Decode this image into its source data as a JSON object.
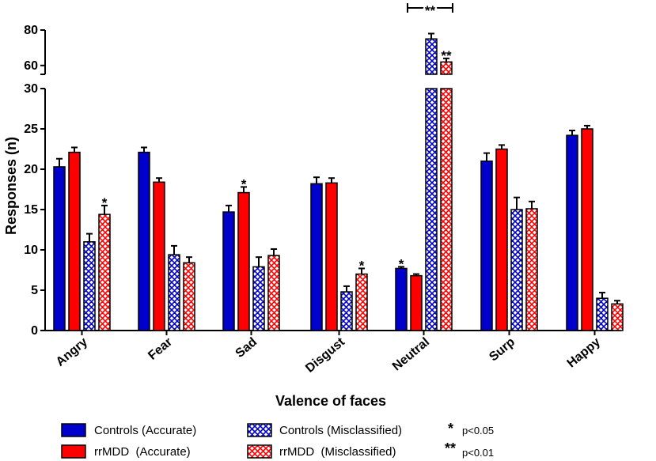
{
  "chart_data": {
    "type": "bar",
    "xlabel": "Valence of faces",
    "ylabel": "Responses (n)",
    "categories": [
      "Angry",
      "Fear",
      "Sad",
      "Disgust",
      "Neutral",
      "Surp",
      "Happy"
    ],
    "y_axis_lower": {
      "range": [
        0,
        30
      ],
      "ticks": [
        "0",
        "5",
        "10",
        "15",
        "20",
        "25",
        "30"
      ]
    },
    "y_axis_upper": {
      "range": [
        55,
        80
      ],
      "ticks": [
        "60",
        "80"
      ]
    },
    "series": [
      {
        "name": "Controls (Accurate)",
        "color": "#0000cc",
        "pattern": "solid",
        "values": [
          20.3,
          22.1,
          14.7,
          18.2,
          7.7,
          21.0,
          24.2
        ],
        "errors": [
          1.0,
          0.6,
          0.8,
          0.8,
          0.2,
          1.0,
          0.6
        ]
      },
      {
        "name": "rrMDD  (Accurate)",
        "color": "#ff0000",
        "pattern": "solid",
        "values": [
          22.1,
          18.4,
          17.1,
          18.3,
          6.8,
          22.5,
          25.0
        ],
        "errors": [
          0.6,
          0.5,
          0.7,
          0.6,
          0.2,
          0.5,
          0.4
        ]
      },
      {
        "name": "Controls (Misclassified)",
        "color": "#0000cc",
        "pattern": "crosshatch",
        "values": [
          11.0,
          9.4,
          7.9,
          4.8,
          75.0,
          15.0,
          4.0
        ],
        "errors": [
          1.0,
          1.1,
          1.2,
          0.7,
          3.0,
          1.5,
          0.7
        ]
      },
      {
        "name": "rrMDD  (Misclassified)",
        "color": "#ff0000",
        "pattern": "crosshatch",
        "values": [
          14.4,
          8.4,
          9.3,
          7.0,
          62.0,
          15.1,
          3.3
        ],
        "errors": [
          1.1,
          0.7,
          0.8,
          0.7,
          2.0,
          0.9,
          0.4
        ]
      }
    ],
    "annotations": [
      {
        "text": "*",
        "category": "Angry",
        "series": 3
      },
      {
        "text": "*",
        "category": "Sad",
        "series": 1
      },
      {
        "text": "*",
        "category": "Disgust",
        "series": 3
      },
      {
        "text": "*",
        "category": "Neutral",
        "series": 0
      },
      {
        "text": "**",
        "category": "Neutral",
        "series": 3
      },
      {
        "text": "**",
        "category": "Neutral",
        "bracket": [
          2,
          3
        ]
      }
    ],
    "significance_legend": [
      {
        "symbol": "*",
        "label": "p<0.05"
      },
      {
        "symbol": "**",
        "label": "p<0.01"
      }
    ],
    "legend_position": "bottom"
  }
}
